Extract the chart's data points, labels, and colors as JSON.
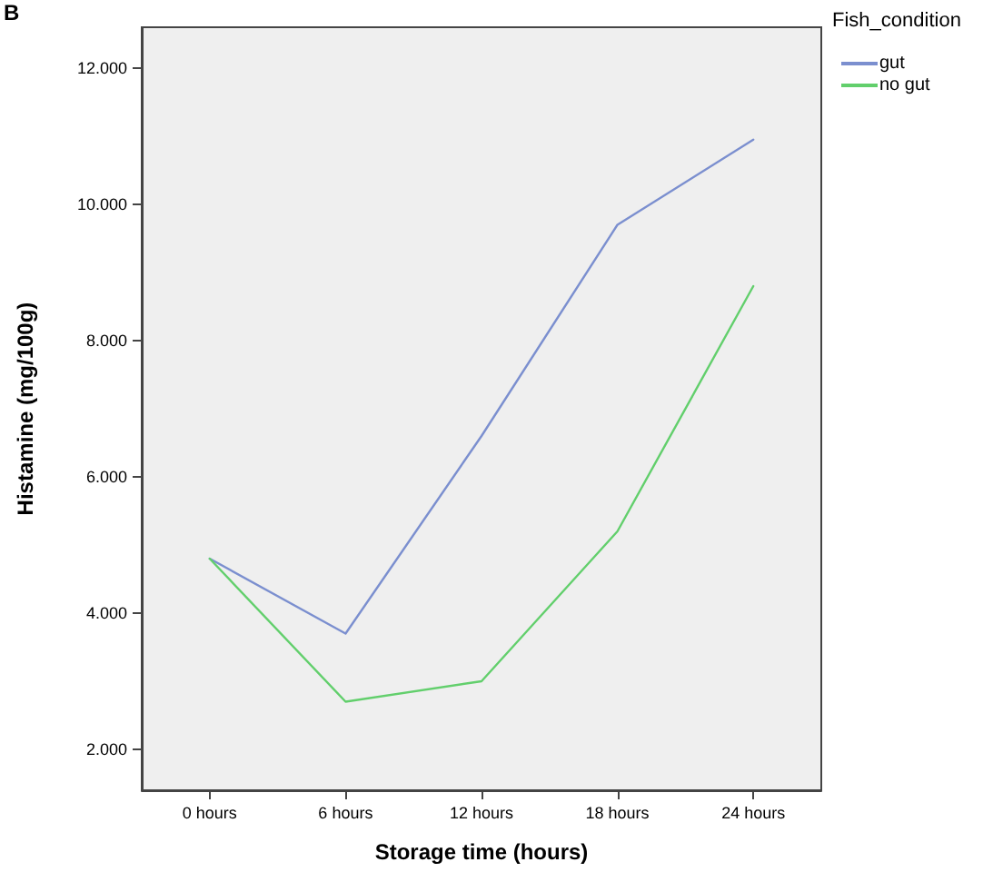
{
  "chart_data": {
    "type": "line",
    "xlabel": "Storage time (hours)",
    "ylabel": "Histamine (mg/100g)",
    "legend_title": "Fish_condition",
    "annotations": [
      "B"
    ],
    "categories": [
      "0 hours",
      "6 hours",
      "12 hours",
      "18 hours",
      "24 hours"
    ],
    "series": [
      {
        "name": "gut",
        "color": "#7b8fcf",
        "values": [
          4800,
          3700,
          6600,
          9700,
          10950
        ]
      },
      {
        "name": "no gut",
        "color": "#62cf6c",
        "values": [
          4800,
          2700,
          3000,
          5200,
          8800
        ]
      }
    ],
    "ylim": [
      1400,
      12600
    ],
    "yticks": [
      {
        "value": 2000,
        "label": "2.000"
      },
      {
        "value": 4000,
        "label": "4.000"
      },
      {
        "value": 6000,
        "label": "6.000"
      },
      {
        "value": 8000,
        "label": "8.000"
      },
      {
        "value": 10000,
        "label": "10.000"
      },
      {
        "value": 12000,
        "label": "12.000"
      }
    ],
    "grid": false,
    "legend": "top right",
    "marker": "none",
    "line_style": "solid"
  }
}
